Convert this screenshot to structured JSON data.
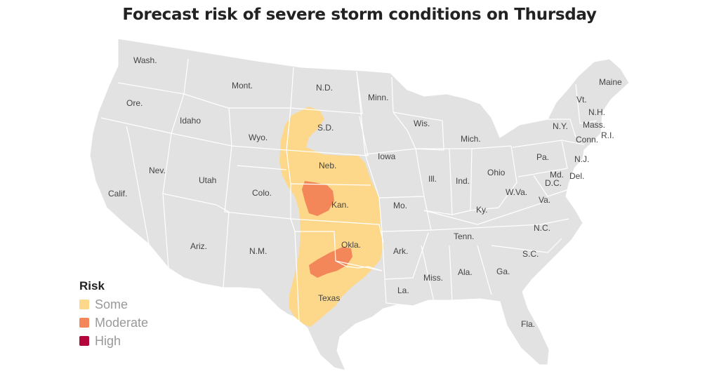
{
  "title": "Forecast risk of severe storm conditions on Thursday",
  "legend": {
    "title": "Risk",
    "items": [
      {
        "label": "Some",
        "color": "#fdd88a"
      },
      {
        "label": "Moderate",
        "color": "#f3875a"
      },
      {
        "label": "High",
        "color": "#b3063c"
      }
    ]
  },
  "map": {
    "land_color": "#e2e2e2",
    "border_color": "#ffffff",
    "state_labels": {
      "wash": "Wash.",
      "ore": "Ore.",
      "calif": "Calif.",
      "idaho": "Idaho",
      "nev": "Nev.",
      "mont": "Mont.",
      "wyo": "Wyo.",
      "utah": "Utah",
      "ariz": "Ariz.",
      "colo": "Colo.",
      "nm": "N.M.",
      "nd": "N.D.",
      "sd": "S.D.",
      "neb": "Neb.",
      "kan": "Kan.",
      "okla": "Okla.",
      "texas": "Texas",
      "minn": "Minn.",
      "iowa": "Iowa",
      "mo": "Mo.",
      "ark": "Ark.",
      "la": "La.",
      "wis": "Wis.",
      "ill": "Ill.",
      "mich": "Mich.",
      "ind": "Ind.",
      "ohio": "Ohio",
      "ky": "Ky.",
      "tenn": "Tenn.",
      "miss": "Miss.",
      "ala": "Ala.",
      "ga": "Ga.",
      "fla": "Fla.",
      "sc": "S.C.",
      "nc": "N.C.",
      "va": "Va.",
      "wva": "W.Va.",
      "pa": "Pa.",
      "ny": "N.Y.",
      "md": "Md.",
      "dc": "D.C.",
      "del": "Del.",
      "nj": "N.J.",
      "conn": "Conn.",
      "ri": "R.I.",
      "mass": "Mass.",
      "vt": "Vt.",
      "nh": "N.H.",
      "maine": "Maine"
    }
  }
}
